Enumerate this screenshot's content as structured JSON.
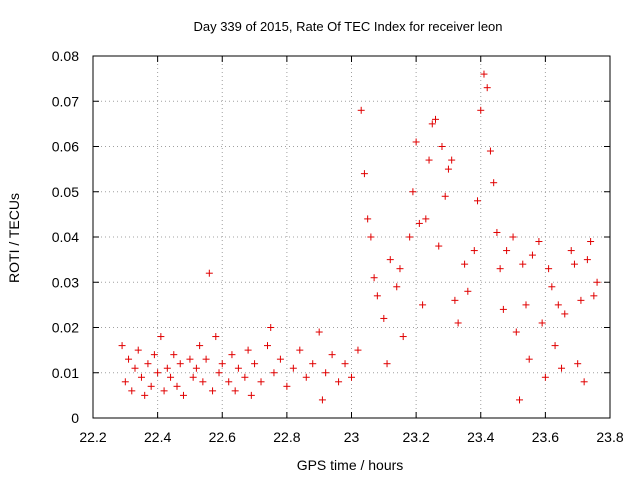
{
  "chart_data": {
    "type": "scatter",
    "title": "Day 339 of 2015, Rate Of TEC Index for receiver leon",
    "xlabel": "GPS time / hours",
    "ylabel": "ROTI / TECUs",
    "xlim": [
      22.2,
      23.8
    ],
    "ylim": [
      0,
      0.08
    ],
    "xticks": [
      22.2,
      22.4,
      22.6,
      22.8,
      23.0,
      23.2,
      23.4,
      23.6,
      23.8
    ],
    "xtick_labels": [
      "22.2",
      "22.4",
      "22.6",
      "22.8",
      "23",
      "23.2",
      "23.4",
      "23.6",
      "23.8"
    ],
    "yticks": [
      0,
      0.01,
      0.02,
      0.03,
      0.04,
      0.05,
      0.06,
      0.07,
      0.08
    ],
    "ytick_labels": [
      "0",
      "0.01",
      "0.02",
      "0.03",
      "0.04",
      "0.05",
      "0.06",
      "0.07",
      "0.08"
    ],
    "grid": true,
    "marker": "+",
    "series": [
      {
        "name": "ROTI",
        "color": "#e00000",
        "points": [
          [
            22.29,
            0.016
          ],
          [
            22.3,
            0.008
          ],
          [
            22.31,
            0.013
          ],
          [
            22.32,
            0.006
          ],
          [
            22.33,
            0.011
          ],
          [
            22.34,
            0.015
          ],
          [
            22.35,
            0.009
          ],
          [
            22.36,
            0.005
          ],
          [
            22.37,
            0.012
          ],
          [
            22.38,
            0.007
          ],
          [
            22.39,
            0.014
          ],
          [
            22.4,
            0.01
          ],
          [
            22.41,
            0.018
          ],
          [
            22.42,
            0.006
          ],
          [
            22.43,
            0.011
          ],
          [
            22.44,
            0.009
          ],
          [
            22.45,
            0.014
          ],
          [
            22.46,
            0.007
          ],
          [
            22.47,
            0.012
          ],
          [
            22.48,
            0.005
          ],
          [
            22.5,
            0.013
          ],
          [
            22.51,
            0.009
          ],
          [
            22.52,
            0.011
          ],
          [
            22.53,
            0.016
          ],
          [
            22.54,
            0.008
          ],
          [
            22.55,
            0.013
          ],
          [
            22.56,
            0.032
          ],
          [
            22.57,
            0.006
          ],
          [
            22.58,
            0.018
          ],
          [
            22.59,
            0.01
          ],
          [
            22.6,
            0.012
          ],
          [
            22.62,
            0.008
          ],
          [
            22.63,
            0.014
          ],
          [
            22.64,
            0.006
          ],
          [
            22.65,
            0.011
          ],
          [
            22.67,
            0.009
          ],
          [
            22.68,
            0.015
          ],
          [
            22.69,
            0.005
          ],
          [
            22.7,
            0.012
          ],
          [
            22.72,
            0.008
          ],
          [
            22.74,
            0.016
          ],
          [
            22.75,
            0.02
          ],
          [
            22.76,
            0.01
          ],
          [
            22.78,
            0.013
          ],
          [
            22.8,
            0.007
          ],
          [
            22.82,
            0.011
          ],
          [
            22.84,
            0.015
          ],
          [
            22.86,
            0.009
          ],
          [
            22.88,
            0.012
          ],
          [
            22.9,
            0.019
          ],
          [
            22.91,
            0.004
          ],
          [
            22.92,
            0.01
          ],
          [
            22.94,
            0.014
          ],
          [
            22.96,
            0.008
          ],
          [
            22.98,
            0.012
          ],
          [
            23.0,
            0.009
          ],
          [
            23.02,
            0.015
          ],
          [
            23.03,
            0.068
          ],
          [
            23.04,
            0.054
          ],
          [
            23.05,
            0.044
          ],
          [
            23.06,
            0.04
          ],
          [
            23.07,
            0.031
          ],
          [
            23.08,
            0.027
          ],
          [
            23.1,
            0.022
          ],
          [
            23.11,
            0.012
          ],
          [
            23.12,
            0.035
          ],
          [
            23.14,
            0.029
          ],
          [
            23.15,
            0.033
          ],
          [
            23.16,
            0.018
          ],
          [
            23.18,
            0.04
          ],
          [
            23.19,
            0.05
          ],
          [
            23.2,
            0.061
          ],
          [
            23.21,
            0.043
          ],
          [
            23.22,
            0.025
          ],
          [
            23.23,
            0.044
          ],
          [
            23.24,
            0.057
          ],
          [
            23.25,
            0.065
          ],
          [
            23.26,
            0.066
          ],
          [
            23.27,
            0.038
          ],
          [
            23.28,
            0.06
          ],
          [
            23.29,
            0.049
          ],
          [
            23.3,
            0.055
          ],
          [
            23.31,
            0.057
          ],
          [
            23.32,
            0.026
          ],
          [
            23.33,
            0.021
          ],
          [
            23.35,
            0.034
          ],
          [
            23.36,
            0.028
          ],
          [
            23.38,
            0.037
          ],
          [
            23.39,
            0.048
          ],
          [
            23.4,
            0.068
          ],
          [
            23.41,
            0.076
          ],
          [
            23.42,
            0.073
          ],
          [
            23.43,
            0.059
          ],
          [
            23.44,
            0.052
          ],
          [
            23.45,
            0.041
          ],
          [
            23.46,
            0.033
          ],
          [
            23.47,
            0.024
          ],
          [
            23.48,
            0.037
          ],
          [
            23.5,
            0.04
          ],
          [
            23.51,
            0.019
          ],
          [
            23.52,
            0.004
          ],
          [
            23.53,
            0.034
          ],
          [
            23.54,
            0.025
          ],
          [
            23.55,
            0.013
          ],
          [
            23.56,
            0.036
          ],
          [
            23.58,
            0.039
          ],
          [
            23.59,
            0.021
          ],
          [
            23.6,
            0.009
          ],
          [
            23.61,
            0.033
          ],
          [
            23.62,
            0.029
          ],
          [
            23.63,
            0.016
          ],
          [
            23.64,
            0.025
          ],
          [
            23.65,
            0.011
          ],
          [
            23.66,
            0.023
          ],
          [
            23.68,
            0.037
          ],
          [
            23.69,
            0.034
          ],
          [
            23.7,
            0.012
          ],
          [
            23.71,
            0.026
          ],
          [
            23.72,
            0.008
          ],
          [
            23.73,
            0.035
          ],
          [
            23.74,
            0.039
          ],
          [
            23.75,
            0.027
          ],
          [
            23.76,
            0.03
          ]
        ]
      }
    ]
  }
}
